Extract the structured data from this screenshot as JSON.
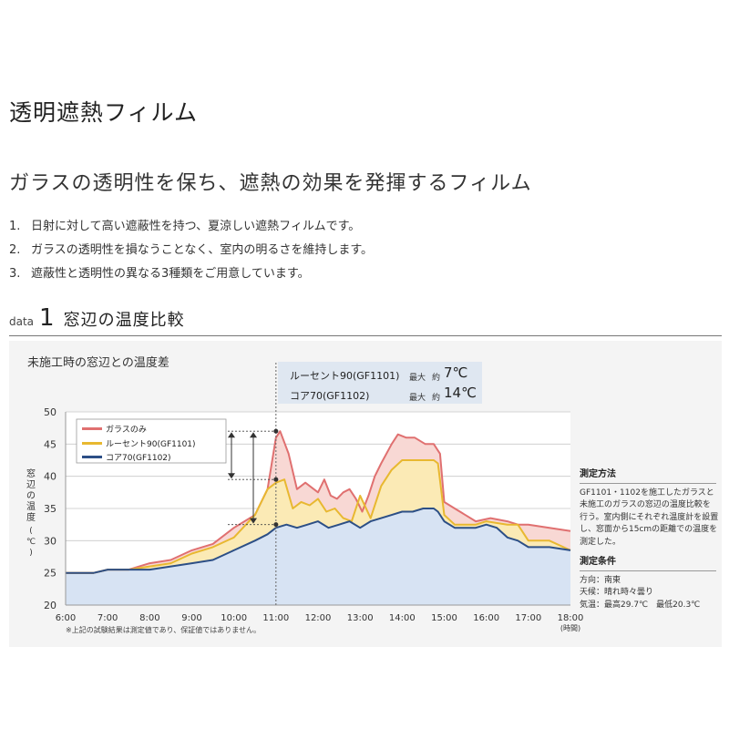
{
  "page": {
    "title": "透明遮熱フィルム",
    "subtitle": "ガラスの透明性を保ち、遮熱の効果を発揮するフィルム",
    "points": [
      {
        "num": "1.",
        "text": "日射に対して高い遮蔽性を持つ、夏涼しい遮熱フィルムです。"
      },
      {
        "num": "2.",
        "text": "ガラスの透明性を損なうことなく、室内の明るさを維持します。"
      },
      {
        "num": "3.",
        "text": "遮蔽性と透明性の異なる3種類をご用意しています。"
      }
    ]
  },
  "section": {
    "data_word": "data",
    "number": "1",
    "title": "窓辺の温度比較"
  },
  "annotation": {
    "lines": [
      {
        "name": "ルーセント90(GF1101)",
        "max_label": "最大",
        "approx": "約",
        "value": "7℃"
      },
      {
        "name": "コア70(GF1102)",
        "max_label": "最大",
        "approx": "約",
        "value": "14℃"
      }
    ]
  },
  "side": {
    "method_head": "測定方法",
    "method_lines": [
      "GF1101・1102を施工したガラスと",
      "未施工のガラスの窓辺の温度比較を",
      "行う。室内側にそれぞれ温度計を設置",
      "し、窓面から15cmの距離での温度を",
      "測定した。"
    ],
    "cond_head": "測定条件",
    "cond_lines": [
      "方向：南東",
      "天候：晴れ時々曇り",
      "気温：最高29.7℃　最低20.3℃"
    ]
  },
  "disclaimer": "※上記の試験結果は測定値であり、保証値ではありません。",
  "colors": {
    "red": "#e07070",
    "red_fill": "#f8d8d4",
    "yellow": "#e8b830",
    "yellow_fill": "#fbeab5",
    "blue": "#2c4f86",
    "blue_fill": "#d7e3f3",
    "ann_box": "#dfe7f1",
    "grid": "#c8c8c8"
  },
  "chart_data": {
    "type": "area",
    "title": "未施工時の窓辺との温度差",
    "ylabel": "窓辺の温度(℃)",
    "xlabel": "(時間)",
    "ylim": [
      20,
      50
    ],
    "xlim": [
      6,
      18
    ],
    "y_ticks": [
      "20",
      "25",
      "30",
      "35",
      "40",
      "45",
      "50"
    ],
    "x_ticks": [
      "6:00",
      "7:00",
      "8:00",
      "9:00",
      "10:00",
      "11:00",
      "12:00",
      "13:00",
      "14:00",
      "15:00",
      "16:00",
      "17:00",
      "18:00"
    ],
    "legend_position": "top-left",
    "grid": true,
    "series": [
      {
        "name": "ガラスのみ",
        "color": "#e07070",
        "points": [
          [
            6.0,
            25
          ],
          [
            6.67,
            25
          ],
          [
            7.0,
            25.5
          ],
          [
            7.5,
            25.5
          ],
          [
            8.0,
            26.5
          ],
          [
            8.5,
            27
          ],
          [
            9.0,
            28.5
          ],
          [
            9.5,
            29.5
          ],
          [
            10.0,
            32
          ],
          [
            10.5,
            34
          ],
          [
            10.8,
            38
          ],
          [
            11.0,
            46
          ],
          [
            11.1,
            47
          ],
          [
            11.3,
            43.5
          ],
          [
            11.5,
            38
          ],
          [
            11.7,
            39
          ],
          [
            11.9,
            38
          ],
          [
            12.0,
            37.5
          ],
          [
            12.15,
            39.5
          ],
          [
            12.3,
            37
          ],
          [
            12.45,
            36.5
          ],
          [
            12.6,
            37.5
          ],
          [
            12.75,
            38
          ],
          [
            12.9,
            36.5
          ],
          [
            13.05,
            34.5
          ],
          [
            13.2,
            37
          ],
          [
            13.35,
            40
          ],
          [
            13.5,
            42
          ],
          [
            13.75,
            45
          ],
          [
            13.9,
            46.5
          ],
          [
            14.1,
            46
          ],
          [
            14.3,
            46
          ],
          [
            14.55,
            45
          ],
          [
            14.75,
            45
          ],
          [
            14.9,
            43.5
          ],
          [
            15.0,
            36
          ],
          [
            15.25,
            35
          ],
          [
            15.75,
            33
          ],
          [
            16.1,
            33.5
          ],
          [
            16.5,
            33
          ],
          [
            16.75,
            32.5
          ],
          [
            17.0,
            32.5
          ],
          [
            17.5,
            32
          ],
          [
            18.0,
            31.5
          ]
        ]
      },
      {
        "name": "ルーセント90(GF1101)",
        "color": "#e8b830",
        "points": [
          [
            6.0,
            25
          ],
          [
            6.67,
            25
          ],
          [
            7.0,
            25.5
          ],
          [
            7.5,
            25.5
          ],
          [
            8.0,
            26
          ],
          [
            8.5,
            26.5
          ],
          [
            9.0,
            28
          ],
          [
            9.5,
            29
          ],
          [
            10.0,
            30.5
          ],
          [
            10.5,
            34
          ],
          [
            10.8,
            38
          ],
          [
            11.0,
            39
          ],
          [
            11.2,
            39.5
          ],
          [
            11.4,
            35
          ],
          [
            11.6,
            36
          ],
          [
            11.8,
            35.5
          ],
          [
            12.0,
            36.5
          ],
          [
            12.2,
            34.5
          ],
          [
            12.4,
            35
          ],
          [
            12.6,
            33.5
          ],
          [
            12.8,
            33
          ],
          [
            13.0,
            37
          ],
          [
            13.25,
            33.5
          ],
          [
            13.5,
            38.5
          ],
          [
            13.75,
            41
          ],
          [
            14.0,
            42.5
          ],
          [
            14.4,
            42.5
          ],
          [
            14.75,
            42.5
          ],
          [
            14.85,
            42
          ],
          [
            15.0,
            34
          ],
          [
            15.25,
            32.5
          ],
          [
            15.75,
            32.5
          ],
          [
            16.0,
            33
          ],
          [
            16.5,
            32.5
          ],
          [
            16.75,
            32.5
          ],
          [
            17.0,
            30
          ],
          [
            17.5,
            30
          ],
          [
            18.0,
            28.5
          ]
        ]
      },
      {
        "name": "コア70(GF1102)",
        "color": "#2c4f86",
        "points": [
          [
            6.0,
            25
          ],
          [
            6.67,
            25
          ],
          [
            7.0,
            25.5
          ],
          [
            7.5,
            25.5
          ],
          [
            8.0,
            25.5
          ],
          [
            8.5,
            26
          ],
          [
            9.0,
            26.5
          ],
          [
            9.5,
            27
          ],
          [
            10.0,
            28.5
          ],
          [
            10.5,
            30
          ],
          [
            10.8,
            31
          ],
          [
            11.0,
            32
          ],
          [
            11.25,
            32.5
          ],
          [
            11.5,
            32
          ],
          [
            11.75,
            32.5
          ],
          [
            12.0,
            33
          ],
          [
            12.25,
            32
          ],
          [
            12.5,
            32.5
          ],
          [
            12.75,
            33
          ],
          [
            13.0,
            32
          ],
          [
            13.25,
            33
          ],
          [
            13.5,
            33.5
          ],
          [
            13.75,
            34
          ],
          [
            14.0,
            34.5
          ],
          [
            14.25,
            34.5
          ],
          [
            14.5,
            35
          ],
          [
            14.75,
            35
          ],
          [
            14.85,
            34.5
          ],
          [
            15.0,
            33
          ],
          [
            15.25,
            32
          ],
          [
            15.75,
            32
          ],
          [
            16.0,
            32.5
          ],
          [
            16.25,
            32
          ],
          [
            16.5,
            30.5
          ],
          [
            16.75,
            30
          ],
          [
            17.0,
            29
          ],
          [
            17.5,
            29
          ],
          [
            18.0,
            28.5
          ]
        ]
      }
    ]
  }
}
